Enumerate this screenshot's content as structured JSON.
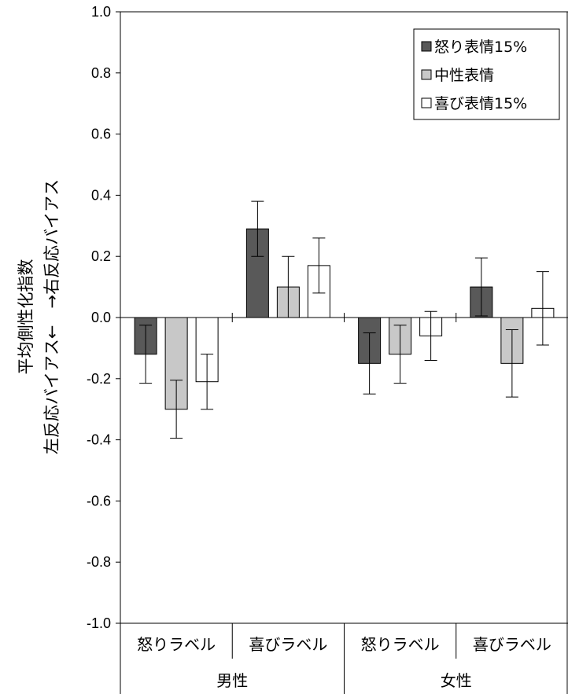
{
  "chart_data": {
    "type": "bar",
    "title": "",
    "ylabel_lines": [
      "平均側性化指数",
      "左反応バイアス←　→右反応バイアス"
    ],
    "ylim": [
      -1.0,
      1.0
    ],
    "yticks": [
      1.0,
      0.8,
      0.6,
      0.4,
      0.2,
      0.0,
      -0.2,
      -0.4,
      -0.6,
      -0.8,
      -1.0
    ],
    "ytick_labels": [
      "1.0",
      "0.8",
      "0.6",
      "0.4",
      "0.2",
      "0.0",
      "-0.2",
      "-0.4",
      "-0.6",
      "-0.8",
      "-1.0"
    ],
    "grid": false,
    "legend_position": "top-right",
    "groups": [
      "男性",
      "女性"
    ],
    "categories": [
      "怒りラベル",
      "喜びラベル",
      "怒りラベル",
      "喜びラベル"
    ],
    "series": [
      {
        "name": "怒り表情15%",
        "color": "#595959",
        "values": [
          -0.12,
          0.29,
          -0.15,
          0.1
        ],
        "errors": [
          0.095,
          0.09,
          0.1,
          0.095
        ]
      },
      {
        "name": "中性表情",
        "color": "#c8c8c8",
        "values": [
          -0.3,
          0.1,
          -0.12,
          -0.15
        ],
        "errors": [
          0.095,
          0.1,
          0.095,
          0.11
        ]
      },
      {
        "name": "喜び表情15%",
        "color": "#ffffff",
        "values": [
          -0.21,
          0.17,
          -0.06,
          0.03
        ],
        "errors": [
          0.09,
          0.09,
          0.08,
          0.12
        ]
      }
    ]
  }
}
